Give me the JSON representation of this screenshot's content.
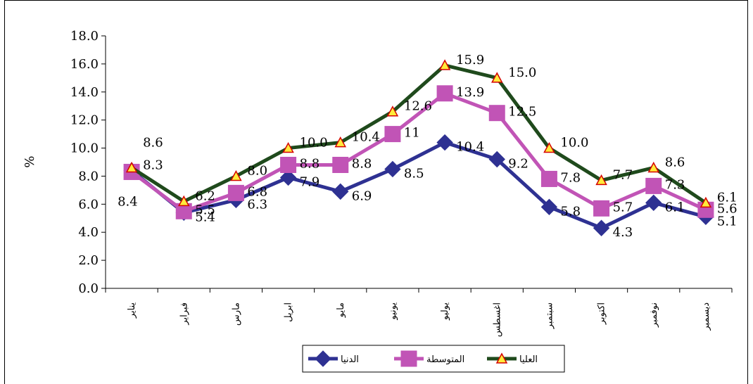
{
  "chart_data": {
    "type": "line",
    "title": "",
    "xlabel": "",
    "ylabel": "%",
    "ylim": [
      0,
      18
    ],
    "yticks": [
      "0.0",
      "2.0",
      "4.0",
      "6.0",
      "8.0",
      "10.0",
      "12.0",
      "14.0",
      "16.0",
      "18.0"
    ],
    "categories": [
      "يناير",
      "فبراير",
      "مارس",
      "ابريل",
      "مايو",
      "يونيو",
      "يوليو",
      "اغسطس",
      "سبتمبر",
      "اكتوبر",
      "نوفمبر",
      "ديسمبر"
    ],
    "grid": false,
    "legend_position": "bottom",
    "series": [
      {
        "name": "الدنيا",
        "color": "#2E3192",
        "marker": "diamond",
        "values": [
          8.4,
          5.4,
          6.3,
          7.9,
          6.9,
          8.5,
          10.4,
          9.2,
          5.8,
          4.3,
          6.1,
          5.1
        ],
        "labels": [
          "8.4",
          "5.4",
          "6.3",
          "7.9",
          "6.9",
          "8.5",
          "10.4",
          "9.2",
          "5.8",
          "4.3",
          "6.1",
          "5.1"
        ]
      },
      {
        "name": "المتوسطة",
        "color": "#C154B6",
        "marker": "square",
        "values": [
          8.3,
          5.5,
          6.8,
          8.8,
          8.8,
          11,
          13.9,
          12.5,
          7.8,
          5.7,
          7.3,
          5.6
        ],
        "labels": [
          "8.3",
          "5.5",
          "6.8",
          "8.8",
          "8.8",
          "11",
          "13.9",
          "12.5",
          "7.8",
          "5.7",
          "7.3",
          "5.6"
        ]
      },
      {
        "name": "العليا",
        "color": "#1F4A1C",
        "marker": "triangle",
        "values": [
          8.6,
          6.2,
          8.0,
          10.0,
          10.4,
          12.6,
          15.9,
          15.0,
          10.0,
          7.7,
          8.6,
          6.1
        ],
        "labels": [
          "8.6",
          "6.2",
          "8.0",
          "10.0",
          "10.4",
          "12.6",
          "15.9",
          "15.0",
          "10.0",
          "7.7",
          "8.6",
          "6.1"
        ]
      }
    ]
  }
}
